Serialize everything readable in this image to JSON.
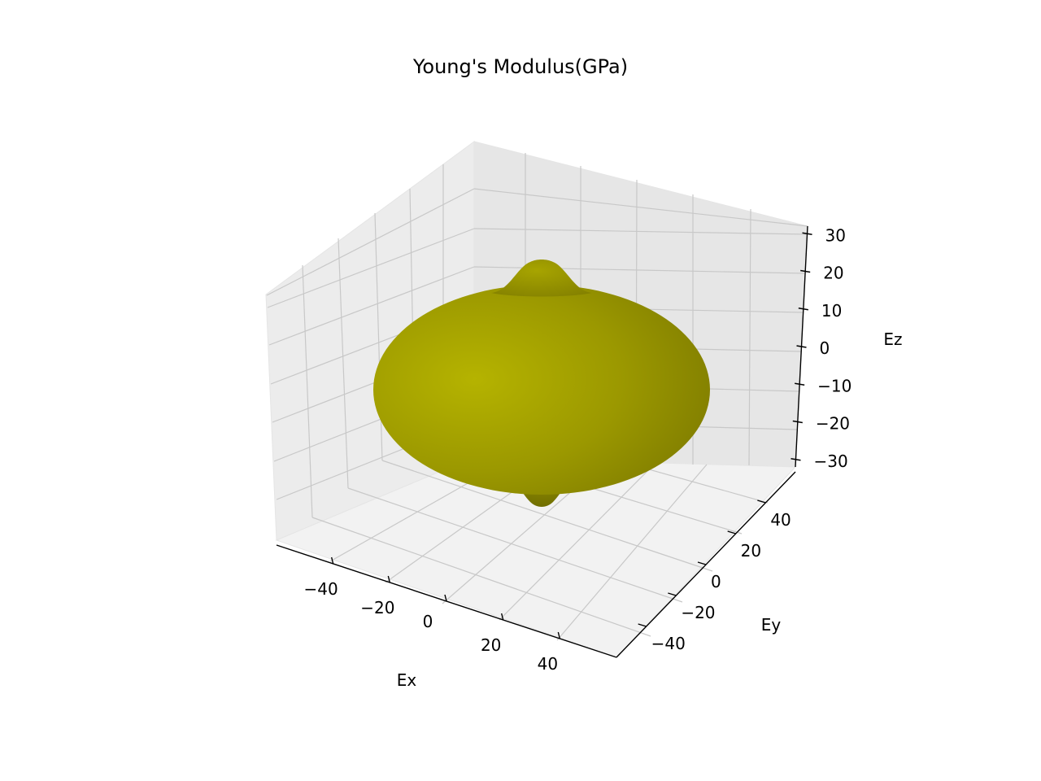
{
  "chart_data": {
    "type": "surface3d",
    "title": "Young's Modulus(GPa)",
    "xlabel": "Ex",
    "ylabel": "Ey",
    "zlabel": "Ez",
    "xticks": [
      -40,
      -20,
      0,
      20,
      40
    ],
    "yticks": [
      -40,
      -20,
      0,
      20,
      40
    ],
    "zticks": [
      -30,
      -20,
      -10,
      0,
      10,
      20,
      30
    ],
    "xlim": [
      -60,
      60
    ],
    "ylim": [
      -60,
      60
    ],
    "zlim": [
      -32,
      32
    ],
    "surface": {
      "shape": "oblate spheroid with polar peaks",
      "equatorial_radius": 60,
      "polar_extent": 25,
      "peak_height": 32
    },
    "surface_color": "#b5b300",
    "grid": true
  }
}
